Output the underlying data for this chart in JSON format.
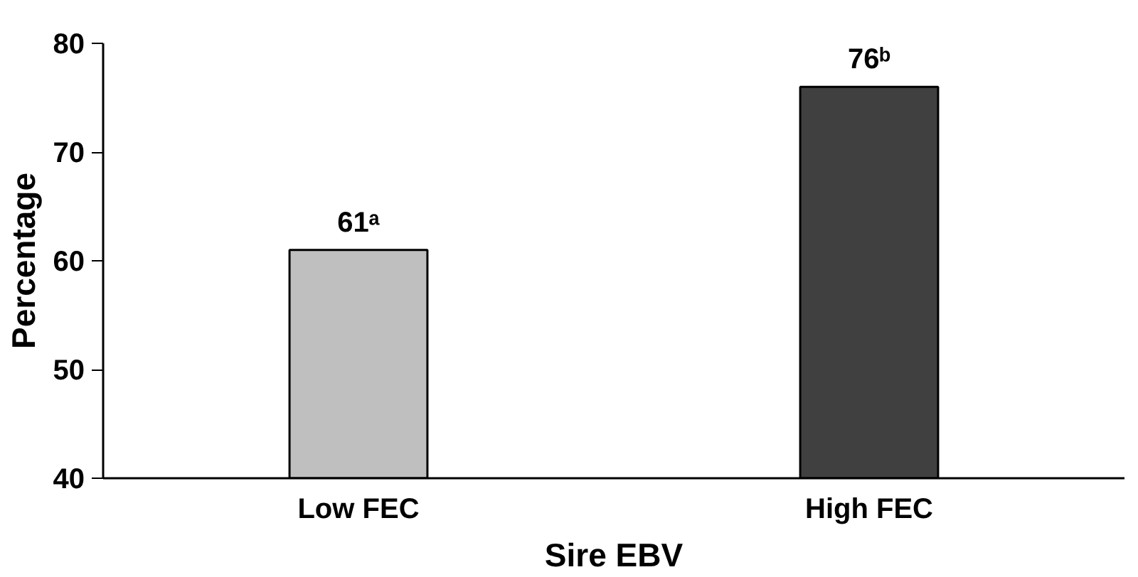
{
  "chart_data": {
    "type": "bar",
    "xlabel": "Sire EBV",
    "ylabel": "Percentage",
    "categories": [
      "Low FEC",
      "High FEC"
    ],
    "values": [
      61,
      76
    ],
    "colors": [
      "#bfbfbf",
      "#404040"
    ],
    "value_labels": [
      "61ᵃ",
      "76ᵇ"
    ],
    "ylim": [
      40,
      80
    ],
    "yticks": [
      40,
      50,
      60,
      70,
      80
    ],
    "grid": false
  }
}
